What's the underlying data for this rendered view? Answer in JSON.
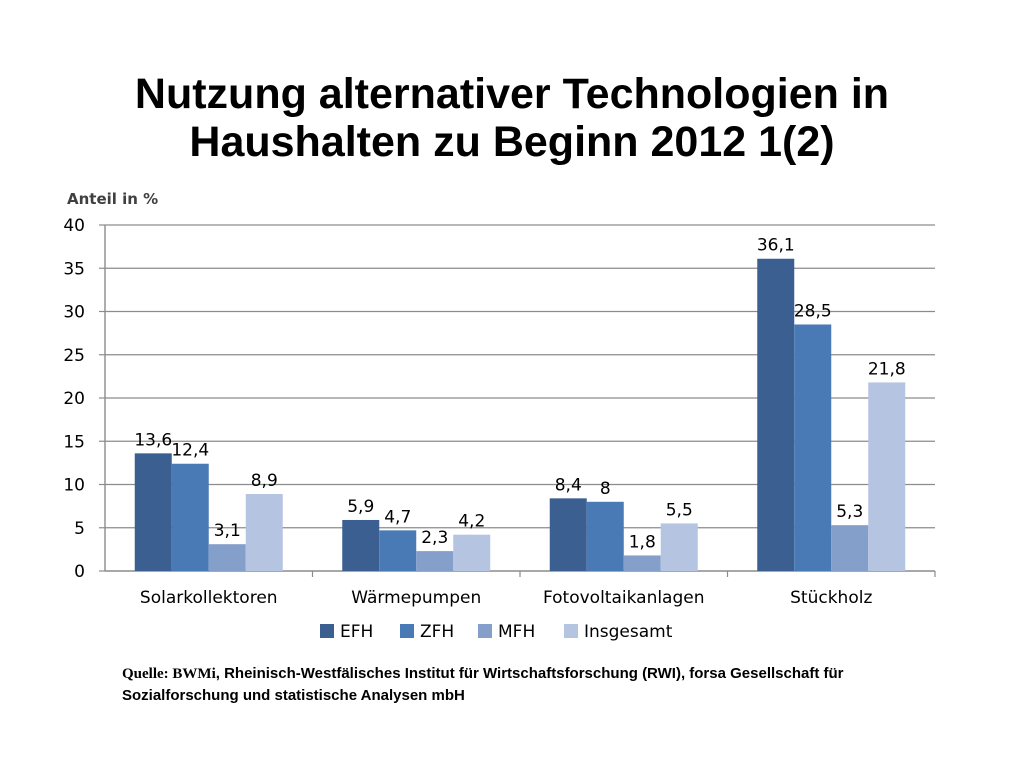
{
  "slide": {
    "title_line1": "Nutzung alternativer Technologien in",
    "title_line2": "Haushalten zu Beginn 2012 1(2)"
  },
  "chart_data": {
    "type": "bar",
    "ylabel": "Anteil in %",
    "ylim": [
      0,
      40
    ],
    "yticks": [
      0,
      5,
      10,
      15,
      20,
      25,
      30,
      35,
      40
    ],
    "grid": true,
    "legend_position": "bottom",
    "categories": [
      "Solarkollektoren",
      "Wärmepumpen",
      "Fotovoltaikanlagen",
      "Stückholz"
    ],
    "series": [
      {
        "name": "EFH",
        "color": "#3c5f91",
        "values": [
          13.6,
          5.9,
          8.4,
          36.1
        ],
        "labels": [
          "13,6",
          "5,9",
          "8,4",
          "36,1"
        ]
      },
      {
        "name": "ZFH",
        "color": "#4a7ab5",
        "values": [
          12.4,
          4.7,
          8,
          28.5
        ],
        "labels": [
          "12,4",
          "4,7",
          "8",
          "28,5"
        ]
      },
      {
        "name": "MFH",
        "color": "#859fcb",
        "values": [
          3.1,
          2.3,
          1.8,
          5.3
        ],
        "labels": [
          "3,1",
          "2,3",
          "1,8",
          "5,3"
        ]
      },
      {
        "name": "Insgesamt",
        "color": "#b5c4e0",
        "values": [
          8.9,
          4.2,
          5.5,
          21.8
        ],
        "labels": [
          "8,9",
          "4,2",
          "5,5",
          "21,8"
        ]
      }
    ]
  },
  "source": {
    "lead": "Quelle: BWMi",
    "text": ", Rheinisch-Westfälisches Institut für Wirtschaftsforschung (RWI),  forsa Gesellschaft für Sozialforschung und statistische Analysen mbH"
  }
}
